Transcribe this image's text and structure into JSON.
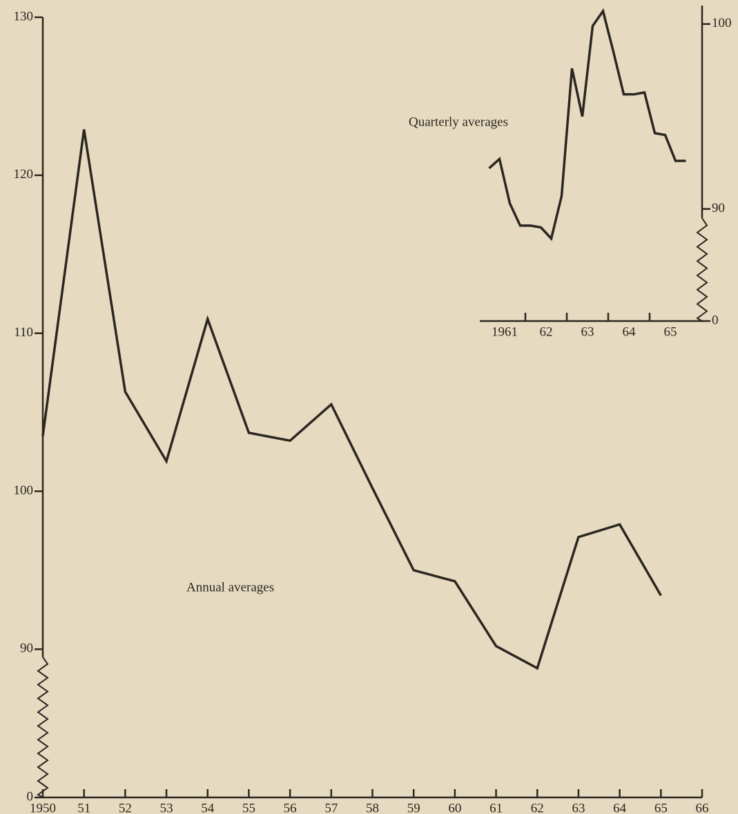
{
  "chart_data": [
    {
      "type": "line",
      "annotation": "Annual averages",
      "x": [
        1950,
        1951,
        1952,
        1953,
        1954,
        1955,
        1956,
        1957,
        1958,
        1959,
        1960,
        1961,
        1962,
        1963,
        1964,
        1965
      ],
      "values": [
        103.5,
        122.9,
        106.3,
        101.9,
        110.9,
        103.7,
        103.2,
        105.5,
        100.2,
        95.0,
        94.3,
        90.2,
        88.8,
        97.1,
        97.9,
        93.4
      ],
      "color": "#2b2620",
      "xlim": [
        1950,
        1966
      ],
      "xticks": [
        1950,
        {
          "value": 1951,
          "label": "51"
        },
        {
          "value": 1952,
          "label": "52"
        },
        {
          "value": 1953,
          "label": "53"
        },
        {
          "value": 1954,
          "label": "54"
        },
        {
          "value": 1955,
          "label": "55"
        },
        {
          "value": 1956,
          "label": "56"
        },
        {
          "value": 1957,
          "label": "57"
        },
        {
          "value": 1958,
          "label": "58"
        },
        {
          "value": 1959,
          "label": "59"
        },
        {
          "value": 1960,
          "label": "60"
        },
        {
          "value": 1961,
          "label": "61"
        },
        {
          "value": 1962,
          "label": "62"
        },
        {
          "value": 1963,
          "label": "63"
        },
        {
          "value": 1964,
          "label": "64"
        },
        {
          "value": 1965,
          "label": "65"
        },
        {
          "value": 1966,
          "label": "66"
        }
      ],
      "ylim": [
        0,
        130
      ],
      "axis_break": [
        0,
        87
      ],
      "yticks": [
        0,
        90,
        100,
        110,
        120,
        130
      ],
      "y_axis_side": "left"
    },
    {
      "type": "line",
      "annotation": "Quarterly averages",
      "x": [
        1961.125,
        1961.375,
        1961.625,
        1961.875,
        1962.125,
        1962.375,
        1962.625,
        1962.875,
        1963.125,
        1963.375,
        1963.625,
        1963.875,
        1964.125,
        1964.375,
        1964.625,
        1964.875,
        1965.125,
        1965.375,
        1965.625,
        1965.875
      ],
      "values": [
        92.2,
        92.7,
        90.3,
        89.1,
        89.1,
        89.0,
        88.4,
        90.7,
        97.6,
        95.0,
        99.9,
        100.7,
        98.5,
        96.2,
        96.2,
        96.3,
        94.1,
        94.0,
        92.6,
        92.6
      ],
      "color": "#2b2620",
      "xlim": [
        1960.9,
        1966.3
      ],
      "xticks": [
        {
          "value": 1961.5,
          "label": "1961"
        },
        {
          "value": 1962.5,
          "label": "62"
        },
        {
          "value": 1963.5,
          "label": "63"
        },
        {
          "value": 1964.5,
          "label": "64"
        },
        {
          "value": 1965.5,
          "label": "65"
        }
      ],
      "xtick_marks": [
        1962,
        1963,
        1964,
        1965
      ],
      "ylim": [
        0,
        101
      ],
      "axis_break": [
        0,
        87
      ],
      "yticks": [
        0,
        90,
        100
      ],
      "y_axis_side": "right"
    }
  ]
}
